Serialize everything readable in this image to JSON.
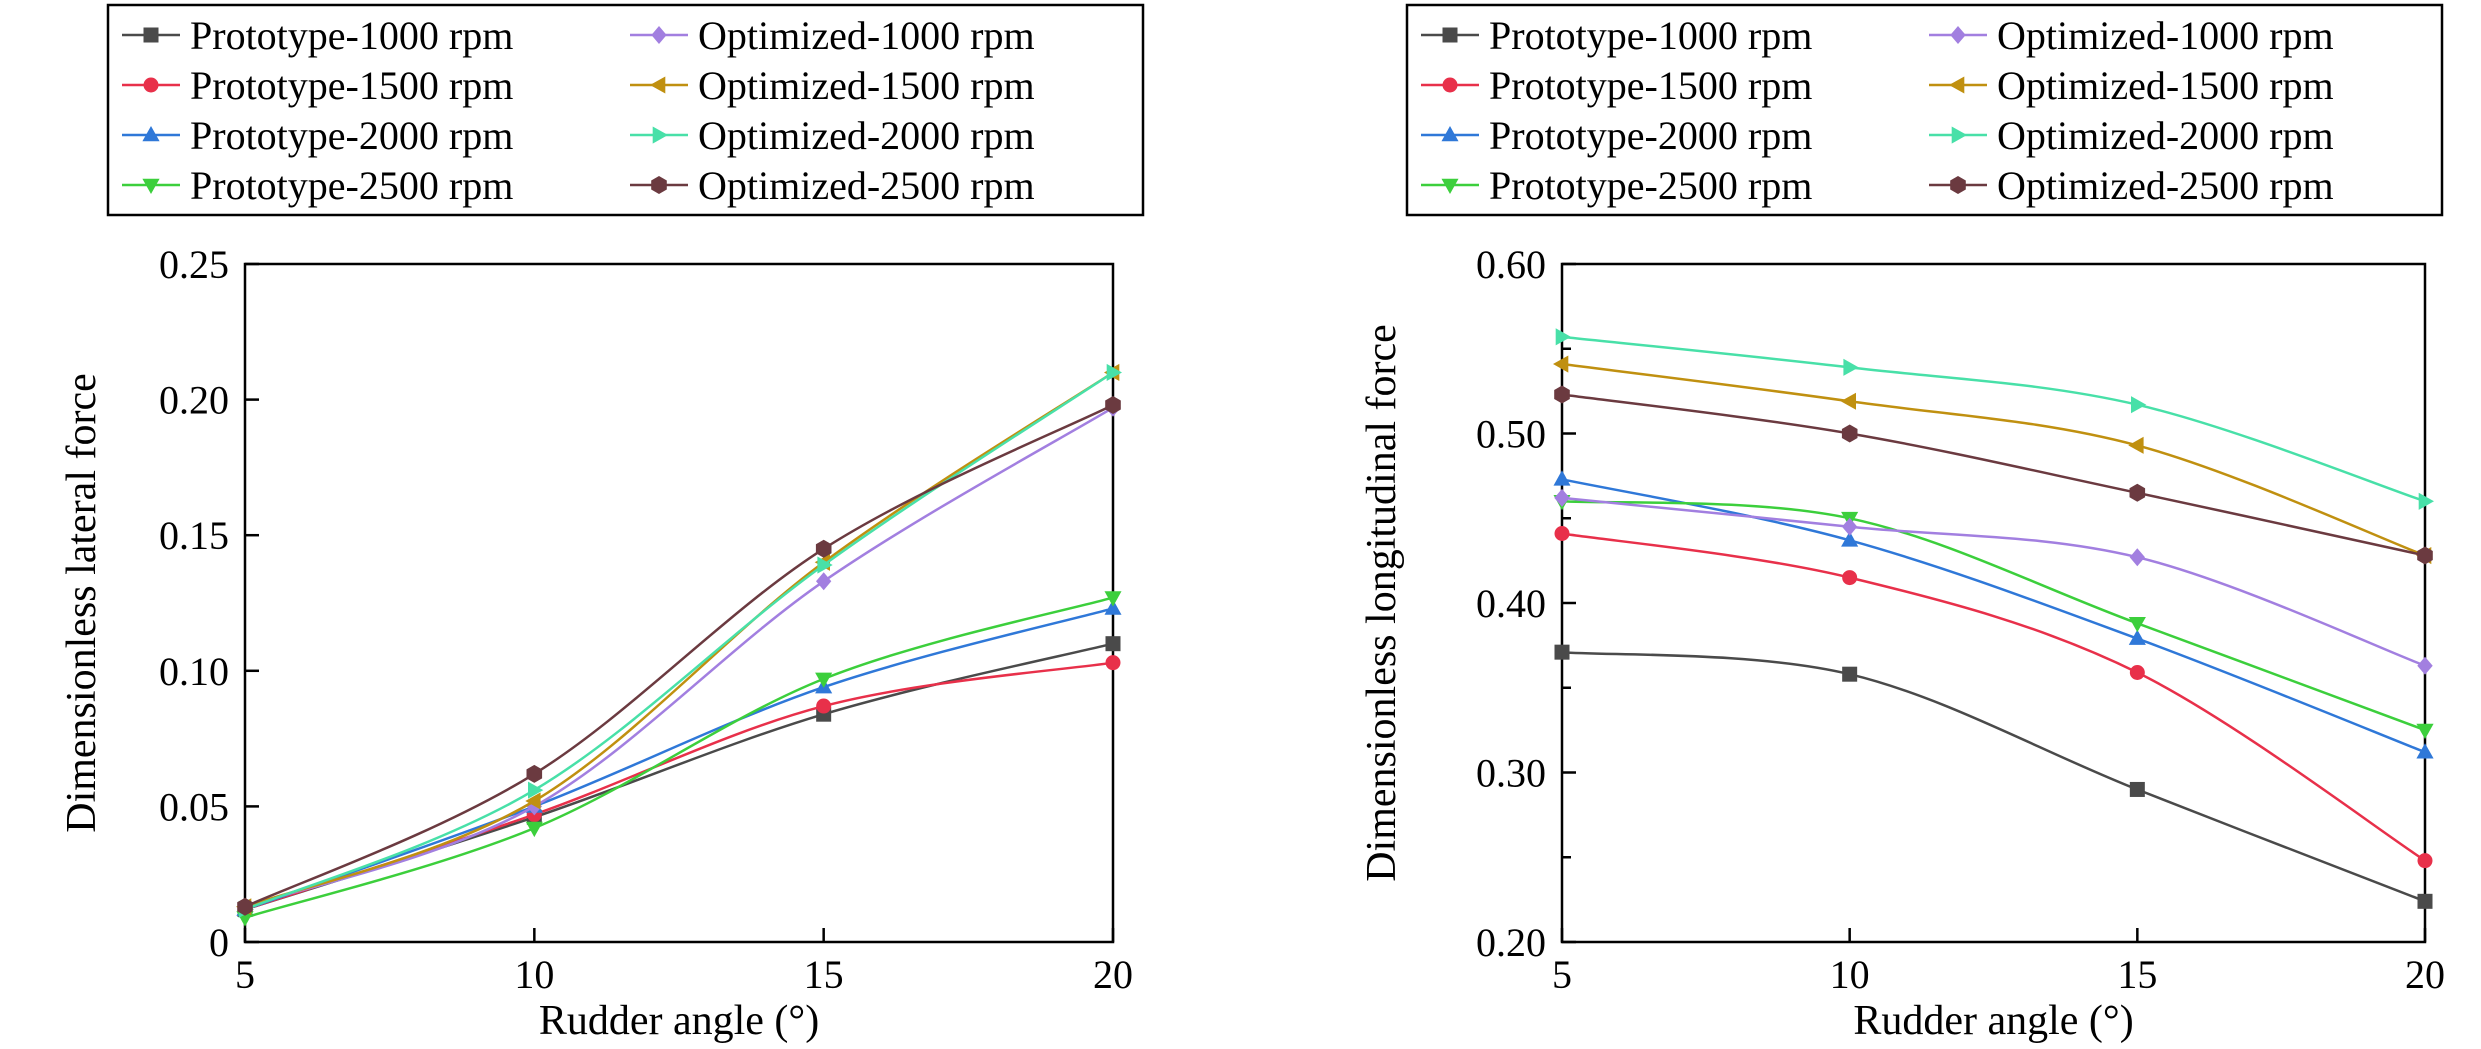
{
  "chart_data": [
    {
      "type": "line",
      "xlabel": "Rudder angle (°)",
      "ylabel": "Dimensionless lateral force",
      "x": [
        5,
        10,
        15,
        20
      ],
      "xlim": [
        5,
        20
      ],
      "ylim": [
        0,
        0.25
      ],
      "xticks": [
        "5",
        "10",
        "15",
        "20"
      ],
      "yticks": [
        "0",
        "0.05",
        "0.10",
        "0.15",
        "0.20",
        "0.25"
      ],
      "grid": false,
      "legend_position": "top",
      "series": [
        {
          "name": "Prototype-1000 rpm",
          "values": [
            0.012,
            0.046,
            0.084,
            0.11
          ],
          "color": "#4a4a4a",
          "marker": "square"
        },
        {
          "name": "Prototype-1500 rpm",
          "values": [
            0.012,
            0.047,
            0.087,
            0.103
          ],
          "color": "#e8304a",
          "marker": "circle"
        },
        {
          "name": "Prototype-2000 rpm",
          "values": [
            0.012,
            0.05,
            0.094,
            0.123
          ],
          "color": "#2f78d8",
          "marker": "triangle-up"
        },
        {
          "name": "Prototype-2500 rpm",
          "values": [
            0.009,
            0.042,
            0.097,
            0.127
          ],
          "color": "#3ccf3c",
          "marker": "triangle-down"
        },
        {
          "name": "Optimized-1000 rpm",
          "values": [
            0.013,
            0.05,
            0.133,
            0.197
          ],
          "color": "#a27fe0",
          "marker": "diamond"
        },
        {
          "name": "Optimized-1500 rpm",
          "values": [
            0.013,
            0.052,
            0.14,
            0.21
          ],
          "color": "#c09010",
          "marker": "triangle-left"
        },
        {
          "name": "Optimized-2000 rpm",
          "values": [
            0.012,
            0.056,
            0.139,
            0.21
          ],
          "color": "#48e0a8",
          "marker": "triangle-right"
        },
        {
          "name": "Optimized-2500 rpm",
          "values": [
            0.013,
            0.062,
            0.145,
            0.198
          ],
          "color": "#6b3a40",
          "marker": "hexagon"
        }
      ]
    },
    {
      "type": "line",
      "xlabel": "Rudder angle (°)",
      "ylabel": "Dimensionless longitudinal force",
      "x": [
        5,
        10,
        15,
        20
      ],
      "xlim": [
        5,
        20
      ],
      "ylim": [
        0.2,
        0.6
      ],
      "xticks": [
        "5",
        "10",
        "15",
        "20"
      ],
      "yticks": [
        "0.20",
        "0.30",
        "0.40",
        "0.50",
        "0.60"
      ],
      "grid": false,
      "legend_position": "top",
      "series": [
        {
          "name": "Prototype-1000 rpm",
          "values": [
            0.371,
            0.358,
            0.29,
            0.224
          ],
          "color": "#4a4a4a",
          "marker": "square"
        },
        {
          "name": "Prototype-1500 rpm",
          "values": [
            0.441,
            0.415,
            0.359,
            0.248
          ],
          "color": "#e8304a",
          "marker": "circle"
        },
        {
          "name": "Prototype-2000 rpm",
          "values": [
            0.473,
            0.437,
            0.379,
            0.312
          ],
          "color": "#2f78d8",
          "marker": "triangle-up"
        },
        {
          "name": "Prototype-2500 rpm",
          "values": [
            0.46,
            0.45,
            0.388,
            0.325
          ],
          "color": "#3ccf3c",
          "marker": "triangle-down"
        },
        {
          "name": "Optimized-1000 rpm",
          "values": [
            0.462,
            0.445,
            0.427,
            0.363
          ],
          "color": "#a27fe0",
          "marker": "diamond"
        },
        {
          "name": "Optimized-1500 rpm",
          "values": [
            0.541,
            0.519,
            0.493,
            0.428
          ],
          "color": "#c09010",
          "marker": "triangle-left"
        },
        {
          "name": "Optimized-2000 rpm",
          "values": [
            0.557,
            0.539,
            0.517,
            0.46
          ],
          "color": "#48e0a8",
          "marker": "triangle-right"
        },
        {
          "name": "Optimized-2500 rpm",
          "values": [
            0.523,
            0.5,
            0.465,
            0.428
          ],
          "color": "#6b3a40",
          "marker": "hexagon"
        }
      ]
    }
  ]
}
